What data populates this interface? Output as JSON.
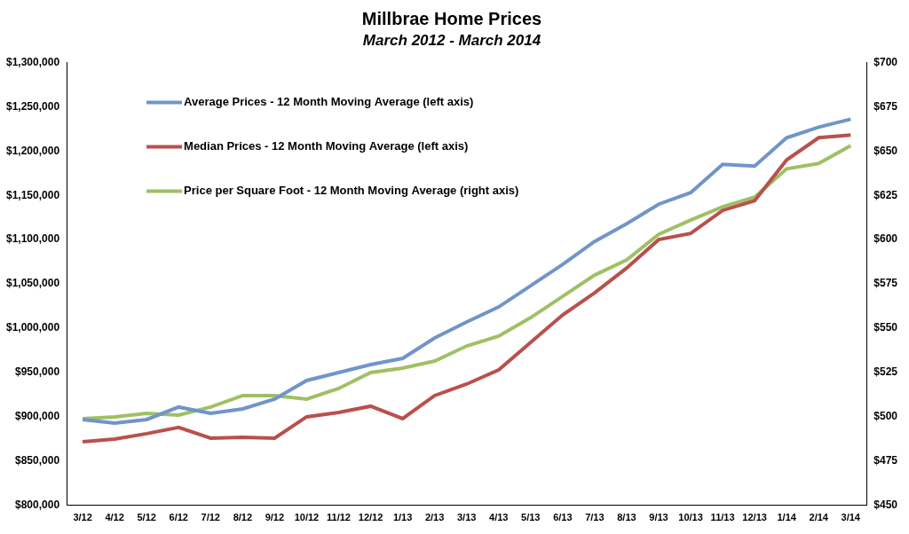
{
  "chart_data": {
    "type": "line",
    "title": "Millbrae Home Prices",
    "subtitle": "March 2012 - March 2014",
    "categories": [
      "3/12",
      "4/12",
      "5/12",
      "6/12",
      "7/12",
      "8/12",
      "9/12",
      "10/12",
      "11/12",
      "12/12",
      "1/13",
      "2/13",
      "3/13",
      "4/13",
      "5/13",
      "6/13",
      "7/13",
      "8/13",
      "9/13",
      "10/13",
      "11/13",
      "12/13",
      "1/14",
      "2/14",
      "3/14"
    ],
    "series": [
      {
        "name": "Average Prices - 12 Month Moving Average (left axis)",
        "color": "#7095c8",
        "values": [
          897000,
          893000,
          897000,
          911000,
          904000,
          909000,
          920000,
          941000,
          950000,
          959000,
          966000,
          989000,
          1007000,
          1024000,
          1048000,
          1072000,
          1098000,
          1118000,
          1140000,
          1153000,
          1185000,
          1183000,
          1215000,
          1227000,
          1236000
        ]
      },
      {
        "name": "Median Prices - 12 Month Moving Average (left axis)",
        "color": "#b9504c",
        "values": [
          872000,
          875000,
          881000,
          888000,
          876000,
          877000,
          876000,
          900000,
          905000,
          912000,
          898000,
          924000,
          937000,
          953000,
          984000,
          1015000,
          1040000,
          1068000,
          1100000,
          1107000,
          1133000,
          1144000,
          1190000,
          1215000,
          1218000
        ]
      },
      {
        "name": "Price per Square Foot - 12 Month Moving Average (right axis)",
        "color": "#9fc064",
        "axis": "y2",
        "values": [
          499,
          500,
          502,
          501,
          505.5,
          512,
          512,
          510,
          516,
          525,
          527.5,
          531.5,
          540,
          545.5,
          556,
          568,
          580,
          588.5,
          603,
          611,
          618.5,
          624,
          640,
          643,
          653
        ]
      }
    ],
    "ylim": [
      800000,
      1300000
    ],
    "yticks": [
      {
        "value": 800000,
        "label": "$800,000"
      },
      {
        "value": 850000,
        "label": "$850,000"
      },
      {
        "value": 900000,
        "label": "$900,000"
      },
      {
        "value": 950000,
        "label": "$950,000"
      },
      {
        "value": 1000000,
        "label": "$1,000,000"
      },
      {
        "value": 1050000,
        "label": "$1,050,000"
      },
      {
        "value": 1100000,
        "label": "$1,100,000"
      },
      {
        "value": 1150000,
        "label": "$1,150,000"
      },
      {
        "value": 1200000,
        "label": "$1,200,000"
      },
      {
        "value": 1250000,
        "label": "$1,250,000"
      },
      {
        "value": 1300000,
        "label": "$1,300,000"
      }
    ],
    "y2lim": [
      450,
      700
    ],
    "y2ticks": [
      {
        "value": 450,
        "label": "$450"
      },
      {
        "value": 475,
        "label": "$475"
      },
      {
        "value": 500,
        "label": "$500"
      },
      {
        "value": 525,
        "label": "$525"
      },
      {
        "value": 550,
        "label": "$550"
      },
      {
        "value": 575,
        "label": "$575"
      },
      {
        "value": 600,
        "label": "$600"
      },
      {
        "value": 625,
        "label": "$625"
      },
      {
        "value": 650,
        "label": "$650"
      },
      {
        "value": 675,
        "label": "$675"
      },
      {
        "value": 700,
        "label": "$700"
      }
    ],
    "grid": false,
    "legend": "upper left"
  }
}
